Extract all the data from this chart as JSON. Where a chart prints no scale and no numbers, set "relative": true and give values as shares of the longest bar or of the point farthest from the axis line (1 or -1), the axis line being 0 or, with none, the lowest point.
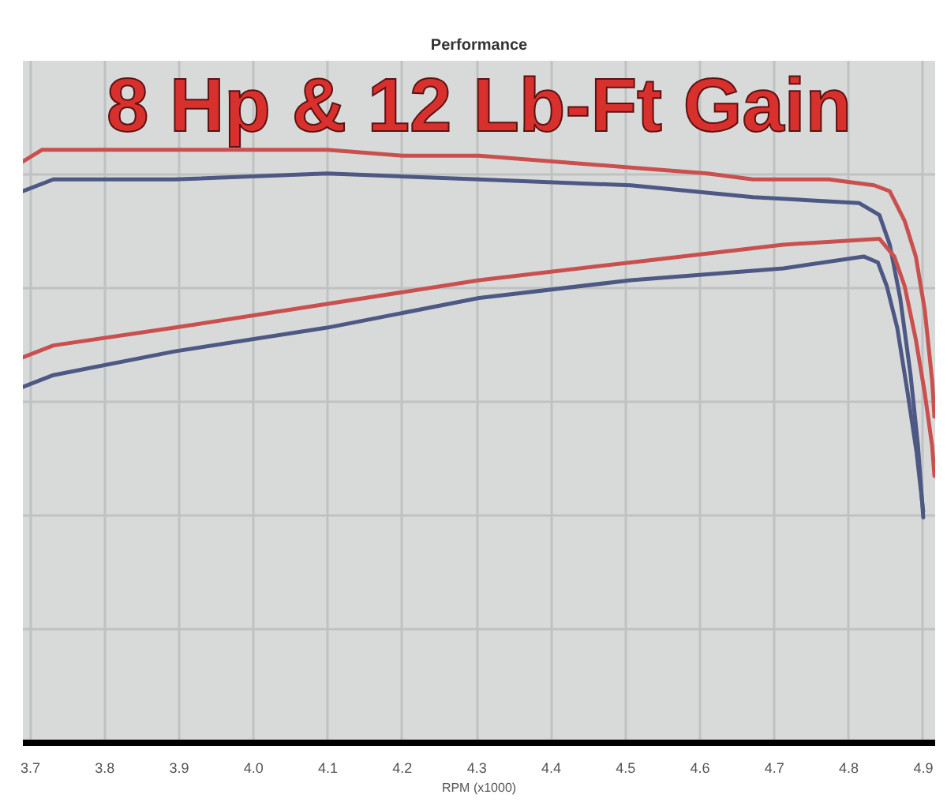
{
  "chart_data": {
    "type": "line",
    "title": "8 Hp & 12 Lb-Ft Gain",
    "subtitle": "Performance",
    "xlabel": "RPM (x1000)",
    "relative": true,
    "grid": true,
    "xlim": [
      3.69,
      4.916
    ],
    "xticks": [
      3.7,
      3.8,
      3.9,
      {
        "value": 4.0,
        "label": "4.0"
      },
      4.1,
      4.2,
      4.3,
      4.4,
      4.5,
      4.6,
      4.7,
      4.8,
      4.9
    ],
    "series": [
      {
        "color": "#c9504e",
        "x": [
          3.69,
          3.716,
          3.894,
          4.099,
          4.201,
          4.303,
          4.507,
          4.61,
          4.671,
          4.773,
          4.834,
          4.855,
          4.875,
          4.89,
          4.902,
          4.912,
          4.915
        ],
        "values": [
          0.98,
          1.0,
          1.0,
          1.0,
          0.99,
          0.99,
          0.97,
          0.96,
          0.95,
          0.95,
          0.94,
          0.93,
          0.88,
          0.82,
          0.73,
          0.61,
          0.55
        ]
      },
      {
        "color": "#4d5884",
        "x": [
          3.69,
          3.731,
          3.894,
          4.099,
          4.303,
          4.507,
          4.671,
          4.814,
          4.841,
          4.855,
          4.869,
          4.883,
          4.893,
          4.9
        ],
        "values": [
          0.93,
          0.95,
          0.95,
          0.96,
          0.95,
          0.94,
          0.92,
          0.91,
          0.89,
          0.84,
          0.75,
          0.62,
          0.5,
          0.38
        ]
      },
      {
        "color": "#c9504e",
        "x": [
          3.69,
          3.731,
          3.894,
          4.099,
          4.303,
          4.507,
          4.712,
          4.841,
          4.861,
          4.875,
          4.89,
          4.902,
          4.912,
          4.915
        ],
        "values": [
          0.65,
          0.67,
          0.7,
          0.74,
          0.78,
          0.81,
          0.84,
          0.85,
          0.82,
          0.77,
          0.68,
          0.59,
          0.5,
          0.45
        ]
      },
      {
        "color": "#4d5884",
        "x": [
          3.69,
          3.731,
          3.894,
          4.099,
          4.303,
          4.507,
          4.712,
          4.82,
          4.839,
          4.851,
          4.865,
          4.879,
          4.891,
          4.9
        ],
        "values": [
          0.6,
          0.62,
          0.66,
          0.7,
          0.75,
          0.78,
          0.8,
          0.82,
          0.81,
          0.77,
          0.7,
          0.59,
          0.49,
          0.39
        ]
      }
    ]
  }
}
